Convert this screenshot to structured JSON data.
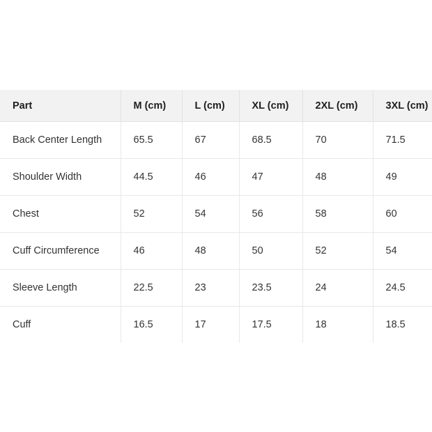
{
  "table": {
    "headers": [
      "Part",
      "M (cm)",
      "L (cm)",
      "XL (cm)",
      "2XL (cm)",
      "3XL (cm)"
    ],
    "rows": [
      [
        "Back Center Length",
        "65.5",
        "67",
        "68.5",
        "70",
        "71.5"
      ],
      [
        "Shoulder Width",
        "44.5",
        "46",
        "47",
        "48",
        "49"
      ],
      [
        "Chest",
        "52",
        "54",
        "56",
        "58",
        "60"
      ],
      [
        "Cuff Circumference",
        "46",
        "48",
        "50",
        "52",
        "54"
      ],
      [
        "Sleeve Length",
        "22.5",
        "23",
        "23.5",
        "24",
        "24.5"
      ],
      [
        "Cuff",
        "16.5",
        "17",
        "17.5",
        "18",
        "18.5"
      ]
    ]
  }
}
